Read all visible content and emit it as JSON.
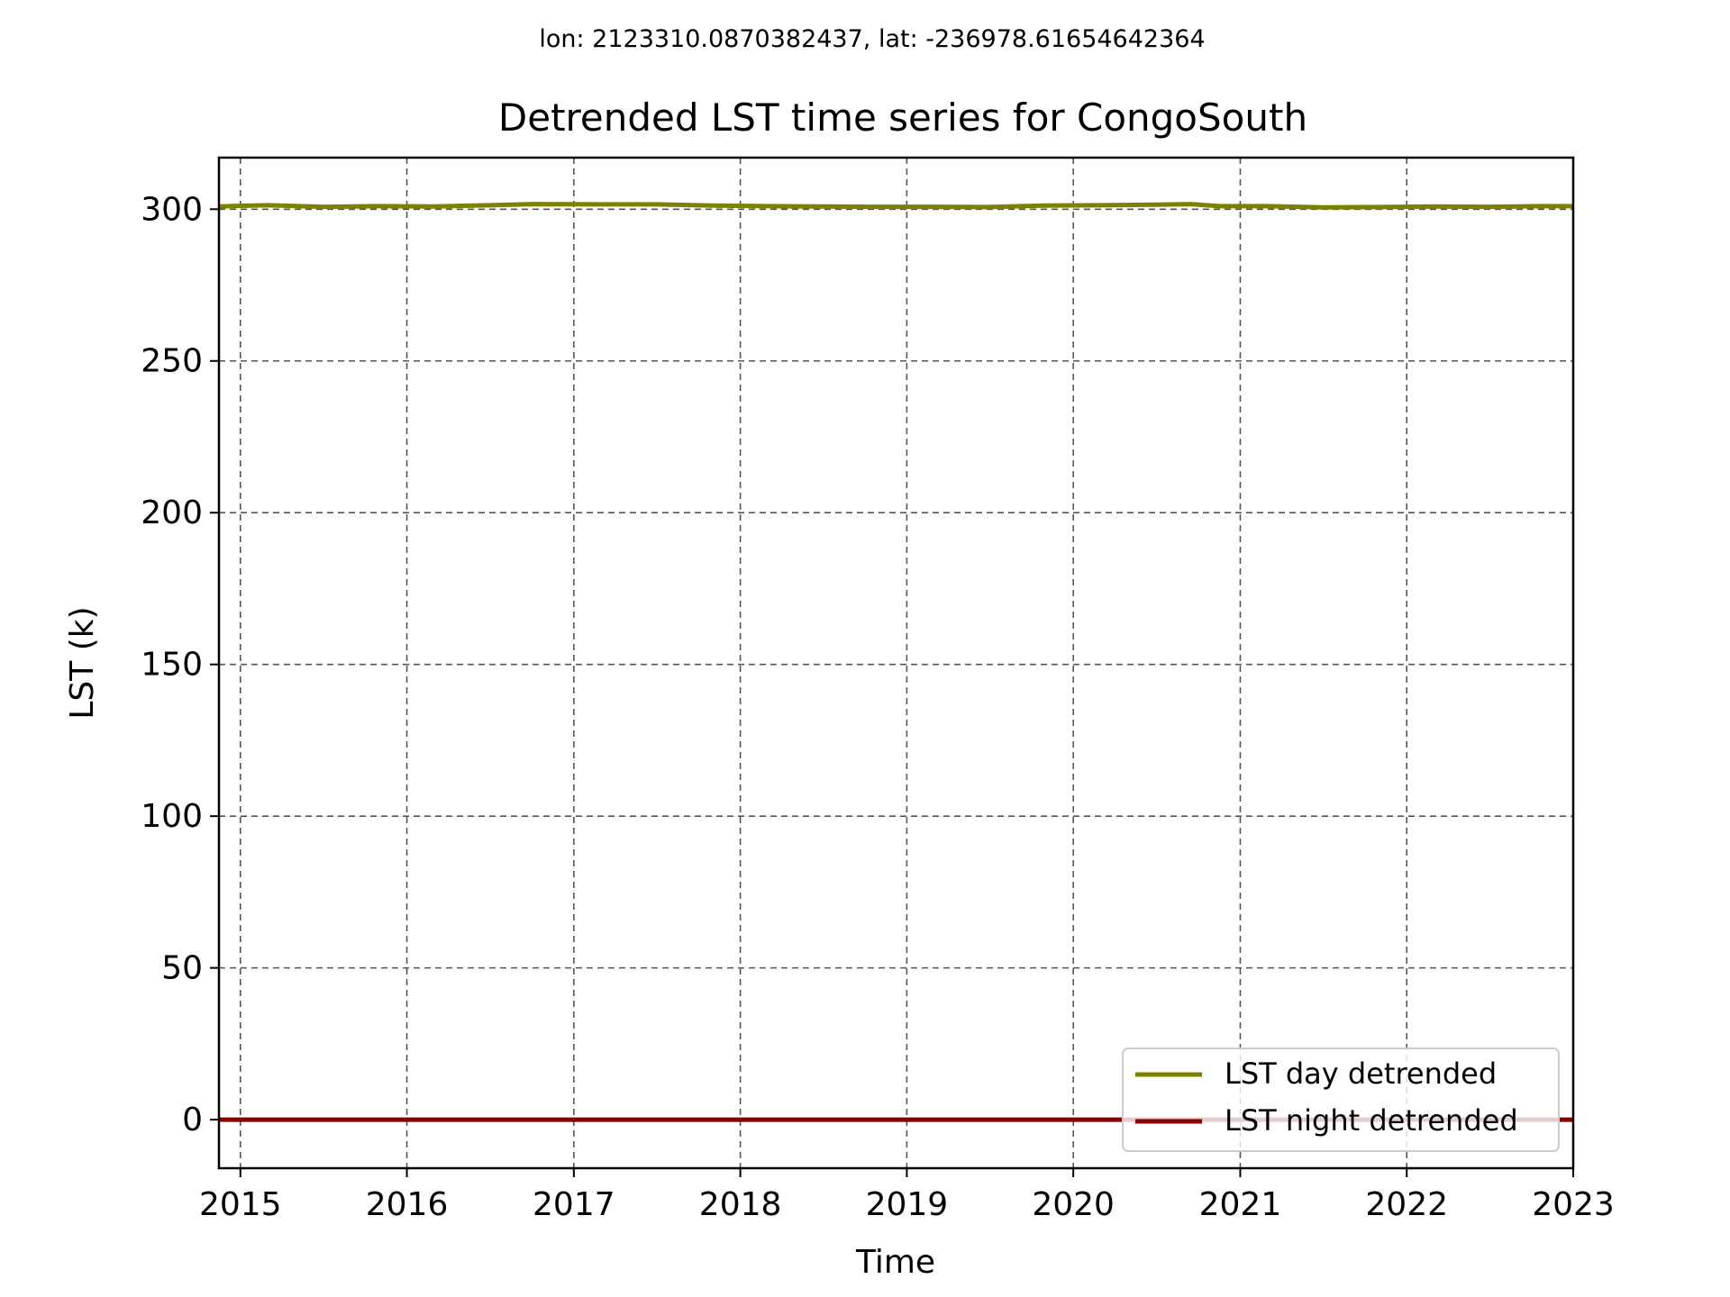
{
  "colors": {
    "background": "#ffffff",
    "axes": "#000000",
    "grid": "#555555",
    "day_series": "#808000",
    "night_series": "#8b0000"
  },
  "chart_data": {
    "type": "line",
    "suptitle": "lon: 2123310.0870382437, lat: -236978.61654642364",
    "title": "Detrended LST time series for CongoSouth",
    "xlabel": "Time",
    "ylabel": "LST (k)",
    "x_ticks": [
      "2015",
      "2016",
      "2017",
      "2018",
      "2019",
      "2020",
      "2021",
      "2022",
      "2023"
    ],
    "y_ticks": [
      "0",
      "50",
      "100",
      "150",
      "200",
      "250",
      "300"
    ],
    "xlim": [
      "2014-11-15",
      "2023-01-01"
    ],
    "ylim": [
      -16,
      317
    ],
    "grid": true,
    "grid_style": "dashed",
    "legend_position": "bottom-right",
    "series": [
      {
        "name": "LST day detrended",
        "color": "#808000",
        "points": [
          [
            "2014-11-15",
            300.9
          ],
          [
            "2015-03-01",
            301.3
          ],
          [
            "2015-07-01",
            300.8
          ],
          [
            "2015-11-01",
            301.0
          ],
          [
            "2016-03-01",
            300.9
          ],
          [
            "2016-07-01",
            301.3
          ],
          [
            "2016-10-01",
            301.7
          ],
          [
            "2017-03-01",
            301.6
          ],
          [
            "2017-07-01",
            301.6
          ],
          [
            "2017-11-01",
            301.2
          ],
          [
            "2018-03-01",
            301.0
          ],
          [
            "2018-07-01",
            300.9
          ],
          [
            "2018-11-01",
            300.8
          ],
          [
            "2019-03-01",
            300.8
          ],
          [
            "2019-07-01",
            300.7
          ],
          [
            "2019-11-01",
            301.2
          ],
          [
            "2020-03-01",
            301.3
          ],
          [
            "2020-07-01",
            301.5
          ],
          [
            "2020-09-15",
            301.7
          ],
          [
            "2020-11-15",
            301.0
          ],
          [
            "2021-03-01",
            301.0
          ],
          [
            "2021-07-01",
            300.6
          ],
          [
            "2021-11-01",
            300.7
          ],
          [
            "2022-03-01",
            300.9
          ],
          [
            "2022-07-01",
            300.8
          ],
          [
            "2022-11-01",
            301.0
          ],
          [
            "2023-01-01",
            301.0
          ]
        ]
      },
      {
        "name": "LST night detrended",
        "color": "#8b0000",
        "points": [
          [
            "2014-11-15",
            0
          ],
          [
            "2017-01-01",
            0
          ],
          [
            "2019-01-01",
            0
          ],
          [
            "2021-01-01",
            0
          ],
          [
            "2023-01-01",
            0
          ]
        ]
      }
    ]
  }
}
